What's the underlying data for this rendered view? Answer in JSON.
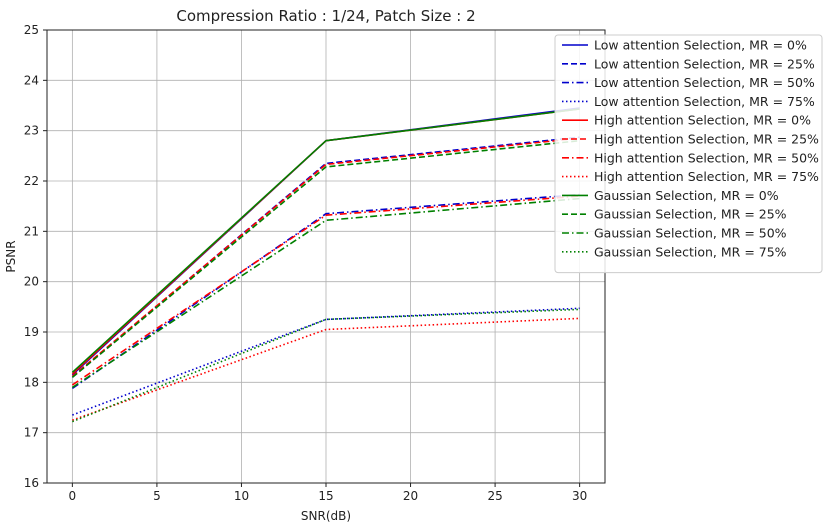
{
  "chart_data": {
    "type": "line",
    "title": "Compression Ratio : 1/24, Patch Size : 2",
    "xlabel": "SNR(dB)",
    "ylabel": "PSNR",
    "xlim": [
      -1.5,
      31.5
    ],
    "ylim": [
      16,
      25
    ],
    "xticks": [
      0,
      5,
      10,
      15,
      20,
      25,
      30
    ],
    "yticks": [
      16,
      17,
      18,
      19,
      20,
      21,
      22,
      23,
      24,
      25
    ],
    "grid": true,
    "legend_position": "top-right",
    "x": [
      0,
      15,
      30
    ],
    "series": [
      {
        "name": "Low attention Selection, MR = 0%",
        "color": "#0000cc",
        "dash": "solid",
        "values": [
          18.15,
          22.8,
          23.45
        ]
      },
      {
        "name": "Low attention Selection, MR = 25%",
        "color": "#0000cc",
        "dash": "dashed",
        "values": [
          18.1,
          22.35,
          22.87
        ]
      },
      {
        "name": "Low attention Selection, MR = 50%",
        "color": "#0000cc",
        "dash": "dashdot",
        "values": [
          17.88,
          21.35,
          21.73
        ]
      },
      {
        "name": "Low attention Selection, MR = 75%",
        "color": "#0000cc",
        "dash": "dotted",
        "values": [
          17.35,
          19.25,
          19.47
        ]
      },
      {
        "name": "High attention Selection, MR = 0%",
        "color": "#ff0000",
        "dash": "solid",
        "values": [
          18.17,
          22.8,
          23.43
        ]
      },
      {
        "name": "High attention Selection, MR = 25%",
        "color": "#ff0000",
        "dash": "dashed",
        "values": [
          18.12,
          22.33,
          22.85
        ]
      },
      {
        "name": "High attention Selection, MR = 50%",
        "color": "#ff0000",
        "dash": "dashdot",
        "values": [
          17.95,
          21.32,
          21.7
        ]
      },
      {
        "name": "High attention Selection, MR = 75%",
        "color": "#ff0000",
        "dash": "dotted",
        "values": [
          17.25,
          19.05,
          19.27
        ]
      },
      {
        "name": "Gaussian Selection, MR = 0%",
        "color": "#008000",
        "dash": "solid",
        "values": [
          18.2,
          22.8,
          23.43
        ]
      },
      {
        "name": "Gaussian Selection, MR = 25%",
        "color": "#008000",
        "dash": "dashed",
        "values": [
          18.1,
          22.28,
          22.8
        ]
      },
      {
        "name": "Gaussian Selection, MR = 50%",
        "color": "#008000",
        "dash": "dashdot",
        "values": [
          17.9,
          21.22,
          21.65
        ]
      },
      {
        "name": "Gaussian Selection, MR = 75%",
        "color": "#008000",
        "dash": "dotted",
        "values": [
          17.22,
          19.25,
          19.45
        ]
      }
    ]
  }
}
